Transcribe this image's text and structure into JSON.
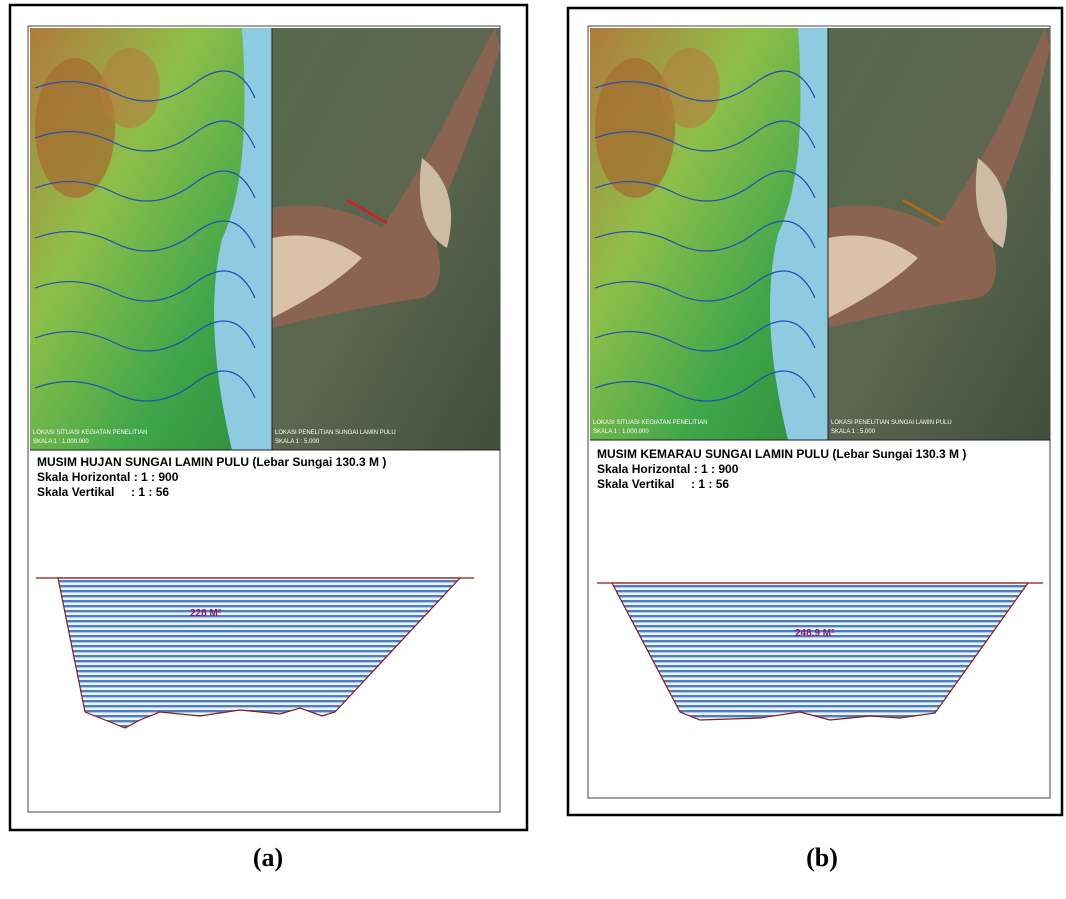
{
  "panels": [
    {
      "map_left_caption": "LOKASI SITUASI KEGIATAN PENELITIAN",
      "map_left_scale": "SKALA 1 : 1.000.000",
      "map_right_caption": "LOKASI PENELITIAN SUNGAI LAMIN PULU",
      "map_right_scale": "SKALA 1 : 5.000",
      "title": "MUSIM HUJAN SUNGAI LAMIN PULU (Lebar Sungai 130.3 M )",
      "horizontal_scale": "Skala Horizontal : 1 : 900",
      "vertical_scale": "Skala Vertikal     : 1 : 56",
      "area_label": "228 M²",
      "caption": "(a)"
    },
    {
      "map_left_caption": "LOKASI SITUASI KEGIATAN PENELITIAN",
      "map_left_scale": "SKALA 1 : 1.000.000",
      "map_right_caption": "LOKASI PENELITIAN SUNGAI LAMIN PULU",
      "map_right_scale": "SKALA 1 : 5.000",
      "title": "MUSIM KEMARAU SUNGAI LAMIN PULU (Lebar Sungai 130.3 M )",
      "horizontal_scale": "Skala Horizontal : 1 : 900",
      "vertical_scale": "Skala Vertikal     : 1 : 56",
      "area_label": "248.9 M²",
      "caption": "(b)"
    }
  ]
}
